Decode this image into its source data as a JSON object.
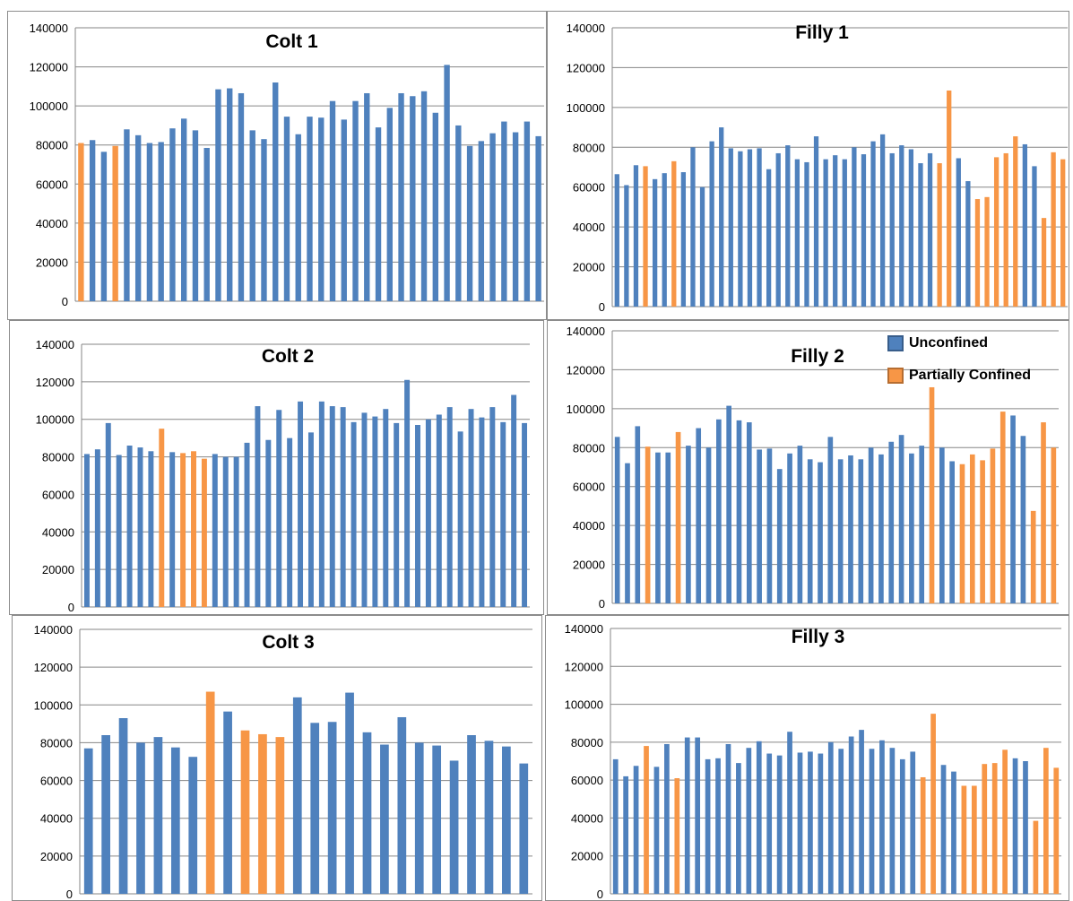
{
  "colors": {
    "unconfined": "#4f81bd",
    "partially_confined": "#f79646"
  },
  "legend": {
    "unconfined_label": "Unconfined",
    "partially_confined_label": "Partially Confined"
  },
  "chart_data": [
    {
      "type": "bar",
      "title": "Colt 1",
      "ylim": [
        0,
        140000
      ],
      "yticks": [
        0,
        20000,
        40000,
        60000,
        80000,
        100000,
        120000,
        140000
      ],
      "values": [
        81000,
        82500,
        76500,
        79500,
        88000,
        85000,
        81000,
        81500,
        88500,
        93500,
        87500,
        78500,
        108500,
        109000,
        106500,
        87500,
        83000,
        112000,
        94500,
        85500,
        94500,
        94000,
        102500,
        93000,
        102500,
        106500,
        89000,
        99000,
        106500,
        105000,
        107500,
        96500,
        121000,
        90000,
        79500,
        82000,
        86000,
        92000,
        86500,
        92000,
        84500
      ],
      "categories": [
        "p",
        "u",
        "u",
        "p",
        "u",
        "u",
        "u",
        "u",
        "u",
        "u",
        "u",
        "u",
        "u",
        "u",
        "u",
        "u",
        "u",
        "u",
        "u",
        "u",
        "u",
        "u",
        "u",
        "u",
        "u",
        "u",
        "u",
        "u",
        "u",
        "u",
        "u",
        "u",
        "u",
        "u",
        "u",
        "u",
        "u",
        "u",
        "u",
        "u",
        "u"
      ]
    },
    {
      "type": "bar",
      "title": "Filly 1",
      "ylim": [
        0,
        140000
      ],
      "yticks": [
        0,
        20000,
        40000,
        60000,
        80000,
        100000,
        120000,
        140000
      ],
      "values": [
        66500,
        61000,
        71000,
        70500,
        64000,
        67000,
        73000,
        67500,
        80000,
        60000,
        83000,
        90000,
        79500,
        78000,
        79000,
        79500,
        69000,
        77000,
        81000,
        74000,
        72500,
        85500,
        74000,
        76000,
        74000,
        80000,
        76500,
        83000,
        86500,
        77000,
        81000,
        79000,
        72000,
        77000,
        72000,
        108500,
        74500,
        63000,
        54000,
        55000,
        75000,
        77000,
        85500,
        81500,
        70500,
        44500,
        77500,
        74000
      ],
      "categories": [
        "u",
        "u",
        "u",
        "p",
        "u",
        "u",
        "p",
        "u",
        "u",
        "u",
        "u",
        "u",
        "u",
        "u",
        "u",
        "u",
        "u",
        "u",
        "u",
        "u",
        "u",
        "u",
        "u",
        "u",
        "u",
        "u",
        "u",
        "u",
        "u",
        "u",
        "u",
        "u",
        "u",
        "u",
        "p",
        "p",
        "u",
        "u",
        "p",
        "p",
        "p",
        "p",
        "p",
        "u",
        "u",
        "p",
        "p",
        "p"
      ]
    },
    {
      "type": "bar",
      "title": "Colt 2",
      "ylim": [
        0,
        140000
      ],
      "yticks": [
        0,
        20000,
        40000,
        60000,
        80000,
        100000,
        120000,
        140000
      ],
      "values": [
        81500,
        84000,
        98000,
        81000,
        86000,
        85000,
        83000,
        95000,
        82500,
        82000,
        83000,
        79000,
        81500,
        80000,
        80000,
        87500,
        107000,
        89000,
        105000,
        90000,
        109500,
        93000,
        109500,
        107000,
        106500,
        98500,
        103500,
        101500,
        105500,
        98000,
        121000,
        97000,
        100000,
        102500,
        106500,
        93500,
        105500,
        101000,
        106500,
        98500,
        113000,
        98000
      ],
      "categories": [
        "u",
        "u",
        "u",
        "u",
        "u",
        "u",
        "u",
        "p",
        "u",
        "p",
        "p",
        "p",
        "u",
        "u",
        "u",
        "u",
        "u",
        "u",
        "u",
        "u",
        "u",
        "u",
        "u",
        "u",
        "u",
        "u",
        "u",
        "u",
        "u",
        "u",
        "u",
        "u",
        "u",
        "u",
        "u",
        "u",
        "u",
        "u",
        "u",
        "u",
        "u",
        "u"
      ]
    },
    {
      "type": "bar",
      "title": "Filly 2",
      "ylim": [
        0,
        140000
      ],
      "yticks": [
        0,
        20000,
        40000,
        60000,
        80000,
        100000,
        120000,
        140000
      ],
      "values": [
        85500,
        72000,
        91000,
        80500,
        77500,
        77500,
        88000,
        81000,
        90000,
        80000,
        94500,
        101500,
        94000,
        93000,
        79000,
        79500,
        69000,
        77000,
        81000,
        74000,
        72500,
        85500,
        74000,
        76000,
        74000,
        80000,
        76500,
        83000,
        86500,
        77000,
        81000,
        111000,
        80000,
        73000,
        71500,
        76500,
        73500,
        79500,
        98500,
        96500,
        86000,
        47500,
        93000,
        80000
      ],
      "categories": [
        "u",
        "u",
        "u",
        "p",
        "u",
        "u",
        "p",
        "u",
        "u",
        "u",
        "u",
        "u",
        "u",
        "u",
        "u",
        "u",
        "u",
        "u",
        "u",
        "u",
        "u",
        "u",
        "u",
        "u",
        "u",
        "u",
        "u",
        "u",
        "u",
        "u",
        "u",
        "p",
        "u",
        "u",
        "p",
        "p",
        "p",
        "p",
        "p",
        "u",
        "u",
        "p",
        "p",
        "p"
      ]
    },
    {
      "type": "bar",
      "title": "Colt 3",
      "ylim": [
        0,
        140000
      ],
      "yticks": [
        0,
        20000,
        40000,
        60000,
        80000,
        100000,
        120000,
        140000
      ],
      "values": [
        77000,
        84000,
        93000,
        80000,
        83000,
        77500,
        72500,
        107000,
        96500,
        86500,
        84500,
        83000,
        104000,
        90500,
        91000,
        106500,
        85500,
        79000,
        93500,
        80000,
        78500,
        70500,
        84000,
        81000,
        78000,
        69000
      ],
      "categories": [
        "u",
        "u",
        "u",
        "u",
        "u",
        "u",
        "u",
        "p",
        "u",
        "p",
        "p",
        "p",
        "u",
        "u",
        "u",
        "u",
        "u",
        "u",
        "u",
        "u",
        "u",
        "u",
        "u",
        "u",
        "u",
        "u"
      ]
    },
    {
      "type": "bar",
      "title": "Filly 3",
      "ylim": [
        0,
        140000
      ],
      "yticks": [
        0,
        20000,
        40000,
        60000,
        80000,
        100000,
        120000,
        140000
      ],
      "values": [
        71000,
        62000,
        67500,
        78000,
        67000,
        79000,
        61000,
        82500,
        82500,
        71000,
        71500,
        79000,
        69000,
        77000,
        80500,
        74000,
        73000,
        85500,
        74500,
        75000,
        74000,
        80000,
        76500,
        83000,
        86500,
        76500,
        81000,
        77000,
        71000,
        75000,
        61500,
        95000,
        68000,
        64500,
        57000,
        57000,
        68500,
        69000,
        76000,
        71500,
        70000,
        38500,
        77000,
        66500
      ],
      "categories": [
        "u",
        "u",
        "u",
        "p",
        "u",
        "u",
        "p",
        "u",
        "u",
        "u",
        "u",
        "u",
        "u",
        "u",
        "u",
        "u",
        "u",
        "u",
        "u",
        "u",
        "u",
        "u",
        "u",
        "u",
        "u",
        "u",
        "u",
        "u",
        "u",
        "u",
        "p",
        "p",
        "u",
        "u",
        "p",
        "p",
        "p",
        "p",
        "p",
        "u",
        "u",
        "p",
        "p",
        "p"
      ]
    }
  ]
}
